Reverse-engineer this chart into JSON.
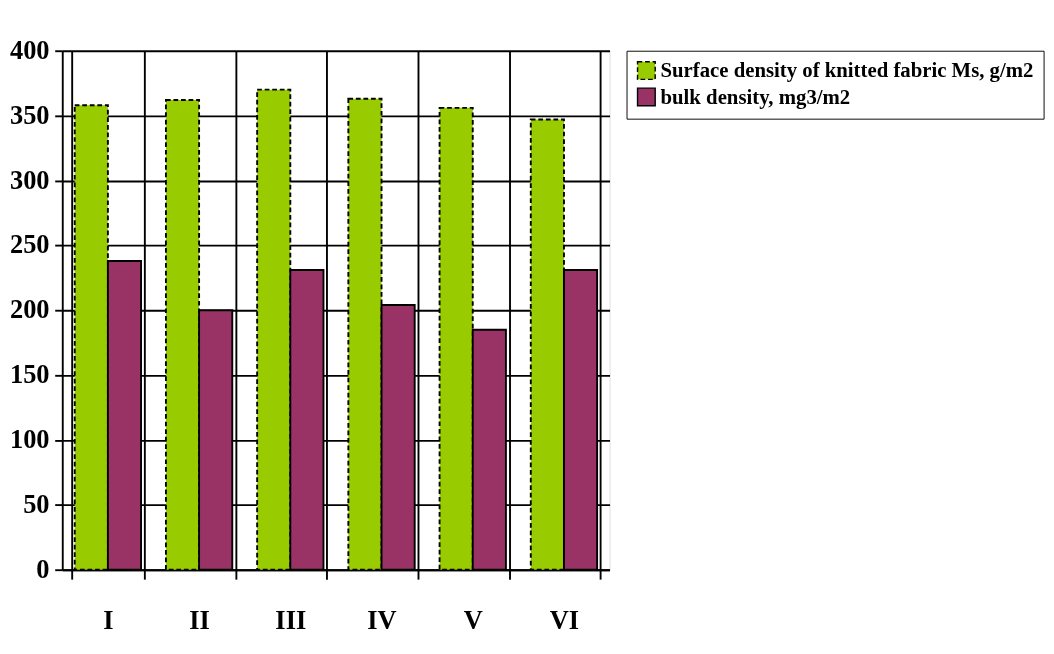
{
  "chart_data": {
    "type": "bar",
    "categories": [
      "I",
      "II",
      "III",
      "IV",
      "V",
      "VI"
    ],
    "series": [
      {
        "name": "Surface density of knitted fabric Ms, g/m2",
        "color": "#99cc00",
        "line_style": "dashed",
        "values": [
          358,
          362,
          370,
          363,
          356,
          347
        ]
      },
      {
        "name": "bulk density, mg3/m2",
        "color": "#993366",
        "line_style": "solid",
        "values": [
          238,
          200,
          231,
          204,
          185,
          231
        ]
      }
    ],
    "ylim": [
      0,
      400
    ],
    "yticks": [
      0,
      50,
      100,
      150,
      200,
      250,
      300,
      350,
      400
    ],
    "grid": true,
    "legend": "right"
  }
}
